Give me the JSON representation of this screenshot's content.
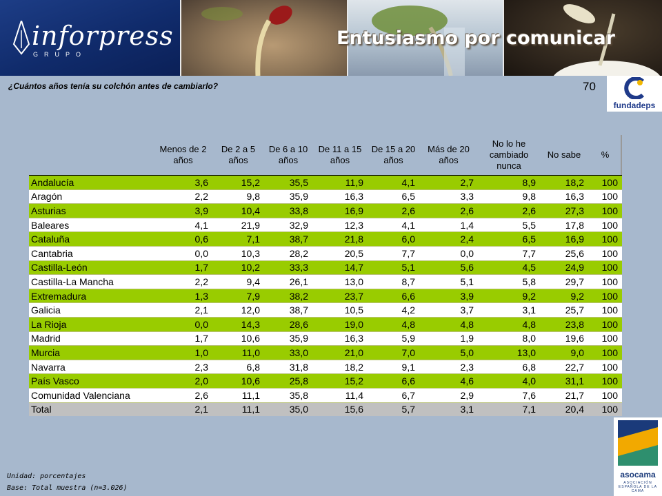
{
  "header": {
    "brand_name": "inforpress",
    "brand_sub": "GRUPO",
    "slogan": "Entusiasmo por comunicar"
  },
  "question": "¿Cuántos años tenía su colchón antes de cambiarlo?",
  "page_number": "70",
  "logos": {
    "fundadeps": "fundadeps",
    "asocama": "asocama",
    "asocama_sub": "ASOCIACIÓN ESPAÑOLA DE LA CAMA"
  },
  "table": {
    "columns": [
      "Menos de 2 años",
      "De 2 a 5 años",
      "De 6 a 10 años",
      "De 11 a 15 años",
      "De 15 a 20 años",
      "Más de 20 años",
      "No lo he cambiado nunca",
      "No sabe",
      "%"
    ],
    "rows": [
      {
        "name": "Andalucía",
        "values": [
          "3,6",
          "15,2",
          "35,5",
          "11,9",
          "4,1",
          "2,7",
          "8,9",
          "18,2",
          "100"
        ]
      },
      {
        "name": "Aragón",
        "values": [
          "2,2",
          "9,8",
          "35,9",
          "16,3",
          "6,5",
          "3,3",
          "9,8",
          "16,3",
          "100"
        ]
      },
      {
        "name": "Asturias",
        "values": [
          "3,9",
          "10,4",
          "33,8",
          "16,9",
          "2,6",
          "2,6",
          "2,6",
          "27,3",
          "100"
        ]
      },
      {
        "name": "Baleares",
        "values": [
          "4,1",
          "21,9",
          "32,9",
          "12,3",
          "4,1",
          "1,4",
          "5,5",
          "17,8",
          "100"
        ]
      },
      {
        "name": "Cataluña",
        "values": [
          "0,6",
          "7,1",
          "38,7",
          "21,8",
          "6,0",
          "2,4",
          "6,5",
          "16,9",
          "100"
        ]
      },
      {
        "name": "Cantabria",
        "values": [
          "0,0",
          "10,3",
          "28,2",
          "20,5",
          "7,7",
          "0,0",
          "7,7",
          "25,6",
          "100"
        ]
      },
      {
        "name": "Castilla-León",
        "values": [
          "1,7",
          "10,2",
          "33,3",
          "14,7",
          "5,1",
          "5,6",
          "4,5",
          "24,9",
          "100"
        ]
      },
      {
        "name": "Castilla-La Mancha",
        "values": [
          "2,2",
          "9,4",
          "26,1",
          "13,0",
          "8,7",
          "5,1",
          "5,8",
          "29,7",
          "100"
        ]
      },
      {
        "name": "Extremadura",
        "values": [
          "1,3",
          "7,9",
          "38,2",
          "23,7",
          "6,6",
          "3,9",
          "9,2",
          "9,2",
          "100"
        ]
      },
      {
        "name": "Galicia",
        "values": [
          "2,1",
          "12,0",
          "38,7",
          "10,5",
          "4,2",
          "3,7",
          "3,1",
          "25,7",
          "100"
        ]
      },
      {
        "name": "La Rioja",
        "values": [
          "0,0",
          "14,3",
          "28,6",
          "19,0",
          "4,8",
          "4,8",
          "4,8",
          "23,8",
          "100"
        ]
      },
      {
        "name": "Madrid",
        "values": [
          "1,7",
          "10,6",
          "35,9",
          "16,3",
          "5,9",
          "1,9",
          "8,0",
          "19,6",
          "100"
        ]
      },
      {
        "name": "Murcia",
        "values": [
          "1,0",
          "11,0",
          "33,0",
          "21,0",
          "7,0",
          "5,0",
          "13,0",
          "9,0",
          "100"
        ]
      },
      {
        "name": "Navarra",
        "values": [
          "2,3",
          "6,8",
          "31,8",
          "18,2",
          "9,1",
          "2,3",
          "6,8",
          "22,7",
          "100"
        ]
      },
      {
        "name": "País Vasco",
        "values": [
          "2,0",
          "10,6",
          "25,8",
          "15,2",
          "6,6",
          "4,6",
          "4,0",
          "31,1",
          "100"
        ]
      },
      {
        "name": "Comunidad Valenciana",
        "values": [
          "2,6",
          "11,1",
          "35,8",
          "11,4",
          "6,7",
          "2,9",
          "7,6",
          "21,7",
          "100"
        ]
      }
    ],
    "total": {
      "name": "Total",
      "values": [
        "2,1",
        "11,1",
        "35,0",
        "15,6",
        "5,7",
        "3,1",
        "7,1",
        "20,4",
        "100"
      ]
    }
  },
  "footnote": {
    "unit": "Unidad: porcentajes",
    "base": "Base: Total muestra (n=3.026)"
  },
  "colors": {
    "background": "#a7b8cd",
    "green_row": "#99cc00",
    "white_row": "#ffffff",
    "total_row": "#c0c0c0"
  }
}
